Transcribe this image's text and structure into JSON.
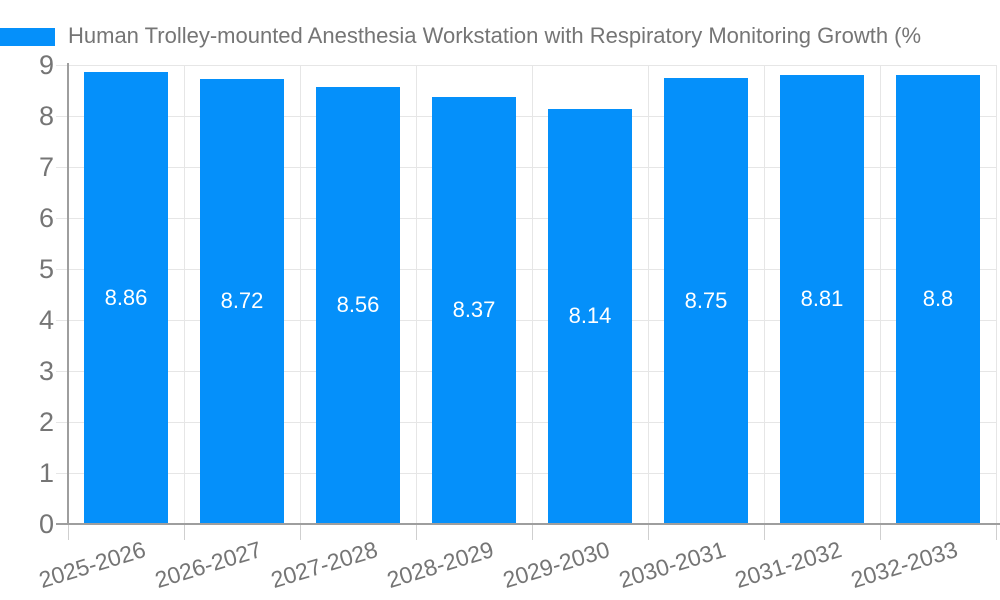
{
  "chart_data": {
    "type": "bar",
    "title": "Human Trolley-mounted Anesthesia Workstation with Respiratory Monitoring Growth (%",
    "categories": [
      "2025-2026",
      "2026-2027",
      "2027-2028",
      "2028-2029",
      "2029-2030",
      "2030-2031",
      "2031-2032",
      "2032-2033"
    ],
    "values": [
      8.86,
      8.72,
      8.56,
      8.37,
      8.14,
      8.75,
      8.81,
      8.8
    ],
    "value_labels": [
      "8.86",
      "8.72",
      "8.56",
      "8.37",
      "8.14",
      "8.75",
      "8.81",
      "8.8"
    ],
    "xlabel": "",
    "ylabel": "",
    "ylim": [
      0,
      9
    ],
    "yticks": [
      0,
      1,
      2,
      3,
      4,
      5,
      6,
      7,
      8,
      9
    ],
    "grid": true,
    "legend_position": "top-left",
    "colors": {
      "bar": "#0590fa",
      "grid": "#e6e6e6",
      "axis": "#9e9e9e",
      "x_tick": "#cfcfcf",
      "text": "#757575",
      "value_text": "#ffffff",
      "background": "#ffffff"
    }
  }
}
